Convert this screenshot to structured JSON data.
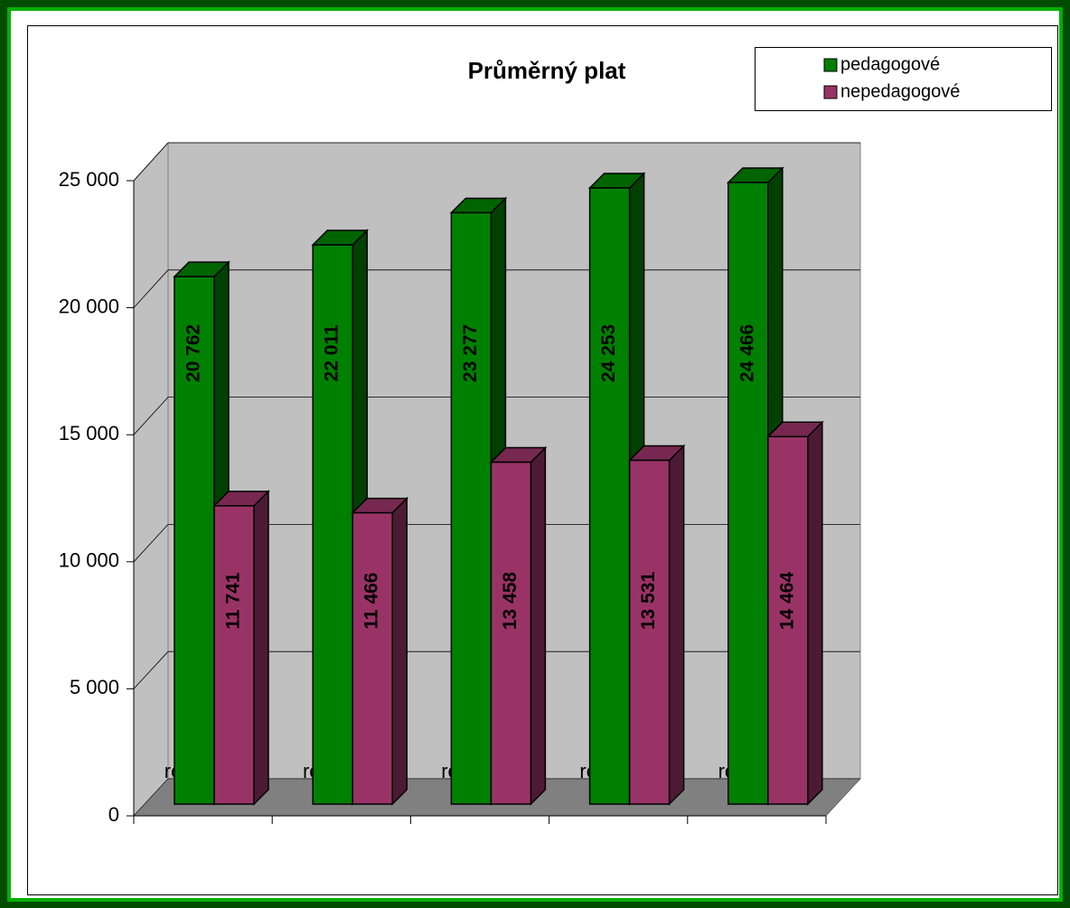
{
  "chart_data": {
    "type": "bar3d",
    "title": "Průměrný plat",
    "categories": [
      "rok 2004",
      "rok 2005",
      "rok 2006",
      "rok 2007",
      "rok 2008"
    ],
    "series": [
      {
        "name": "pedagogové",
        "color": "#008000",
        "values": [
          20762,
          22011,
          23277,
          24253,
          24466
        ],
        "value_labels": [
          "20 762",
          "22 011",
          "23 277",
          "24 253",
          "24 466"
        ]
      },
      {
        "name": "nepedagogové",
        "color": "#993366",
        "values": [
          11741,
          11466,
          13458,
          13531,
          14464
        ],
        "value_labels": [
          "11 741",
          "11 466",
          "13 458",
          "13 531",
          "14 464"
        ]
      }
    ],
    "ylim": [
      0,
      25000
    ],
    "yticks": [
      0,
      {
        "value": 5000,
        "label": "5 000"
      },
      {
        "value": 10000,
        "label": "10 000"
      },
      {
        "value": 15000,
        "label": "15 000"
      },
      {
        "value": 20000,
        "label": "20 000"
      },
      {
        "value": 25000,
        "label": "25 000"
      }
    ],
    "grid": true,
    "legend": "top-right"
  }
}
